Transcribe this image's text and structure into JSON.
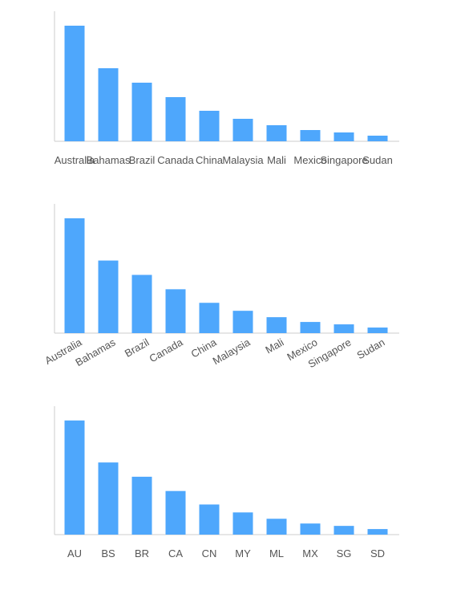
{
  "chart_data": [
    {
      "type": "bar",
      "categories": [
        "Australia",
        "Bahamas",
        "Brazil",
        "Canada",
        "China",
        "Malaysia",
        "Mali",
        "Mexico",
        "Singapore",
        "Sudan"
      ],
      "values": [
        144,
        91,
        73,
        55,
        38,
        28,
        20,
        14,
        11,
        7
      ],
      "color": "#4ea7fc",
      "ylim": [
        0,
        162
      ],
      "label_rotation": 0
    },
    {
      "type": "bar",
      "categories": [
        "Australia",
        "Bahamas",
        "Brazil",
        "Canada",
        "China",
        "Malaysia",
        "Mali",
        "Mexico",
        "Singapore",
        "Sudan"
      ],
      "values": [
        144,
        91,
        73,
        55,
        38,
        28,
        20,
        14,
        11,
        7
      ],
      "color": "#4ea7fc",
      "ylim": [
        0,
        162
      ],
      "label_rotation": -30
    },
    {
      "type": "bar",
      "categories": [
        "AU",
        "BS",
        "BR",
        "CA",
        "CN",
        "MY",
        "ML",
        "MX",
        "SG",
        "SD"
      ],
      "values": [
        144,
        91,
        73,
        55,
        38,
        28,
        20,
        14,
        11,
        7
      ],
      "color": "#4ea7fc",
      "ylim": [
        0,
        162
      ],
      "label_rotation": 0
    }
  ]
}
